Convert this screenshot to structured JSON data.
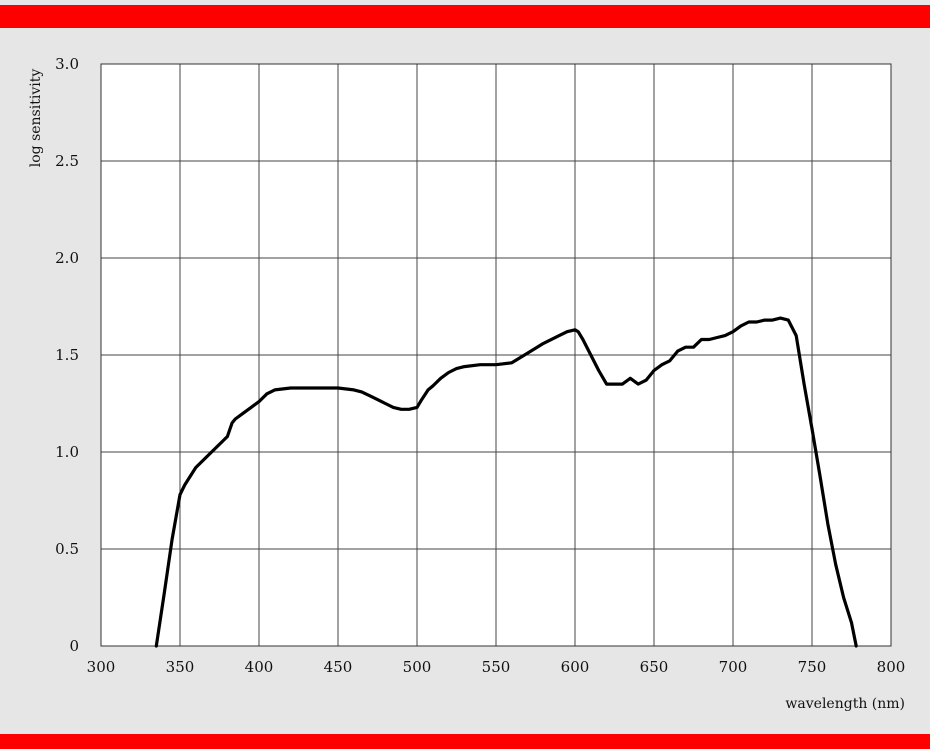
{
  "colors": {
    "banner": "#ff0000",
    "background": "#e6e6e6",
    "plot_bg": "#ffffff",
    "line": "#000000",
    "grid": "#333333"
  },
  "chart_data": {
    "type": "line",
    "title": "",
    "xlabel": "wavelength (nm)",
    "ylabel": "log sensitivity",
    "xlim": [
      300,
      800
    ],
    "ylim": [
      0,
      3.0
    ],
    "xticks": [
      300,
      350,
      400,
      450,
      500,
      550,
      600,
      650,
      700,
      750,
      800
    ],
    "yticks": [
      0,
      0.5,
      1.0,
      1.5,
      2.0,
      2.5,
      3.0
    ],
    "xtick_labels": [
      "300",
      "350",
      "400",
      "450",
      "500",
      "550",
      "600",
      "650",
      "700",
      "750",
      "800"
    ],
    "ytick_labels": [
      "0",
      "0.5",
      "1.0",
      "1.5",
      "2.0",
      "2.5",
      "3.0"
    ],
    "grid": true,
    "series": [
      {
        "x": [
          335,
          340,
          345,
          350,
          353,
          360,
          370,
          380,
          383,
          385,
          390,
          395,
          400,
          405,
          410,
          420,
          430,
          440,
          450,
          460,
          465,
          470,
          475,
          480,
          485,
          490,
          495,
          500,
          503,
          507,
          510,
          515,
          520,
          525,
          530,
          540,
          550,
          560,
          570,
          580,
          590,
          595,
          600,
          602,
          605,
          610,
          615,
          620,
          625,
          630,
          635,
          640,
          645,
          650,
          655,
          660,
          665,
          670,
          675,
          680,
          685,
          690,
          695,
          700,
          705,
          710,
          715,
          720,
          725,
          730,
          735,
          740,
          745,
          750,
          755,
          760,
          765,
          770,
          775,
          778
        ],
        "y": [
          0.0,
          0.27,
          0.55,
          0.78,
          0.83,
          0.92,
          1.0,
          1.08,
          1.15,
          1.17,
          1.2,
          1.23,
          1.26,
          1.3,
          1.32,
          1.33,
          1.33,
          1.33,
          1.33,
          1.32,
          1.31,
          1.29,
          1.27,
          1.25,
          1.23,
          1.22,
          1.22,
          1.23,
          1.27,
          1.32,
          1.34,
          1.38,
          1.41,
          1.43,
          1.44,
          1.45,
          1.45,
          1.46,
          1.51,
          1.56,
          1.6,
          1.62,
          1.63,
          1.62,
          1.58,
          1.5,
          1.42,
          1.35,
          1.35,
          1.35,
          1.38,
          1.35,
          1.37,
          1.42,
          1.45,
          1.47,
          1.52,
          1.54,
          1.54,
          1.58,
          1.58,
          1.59,
          1.6,
          1.62,
          1.65,
          1.67,
          1.67,
          1.68,
          1.68,
          1.69,
          1.68,
          1.6,
          1.35,
          1.12,
          0.88,
          0.63,
          0.42,
          0.25,
          0.12,
          0.0
        ]
      }
    ]
  }
}
